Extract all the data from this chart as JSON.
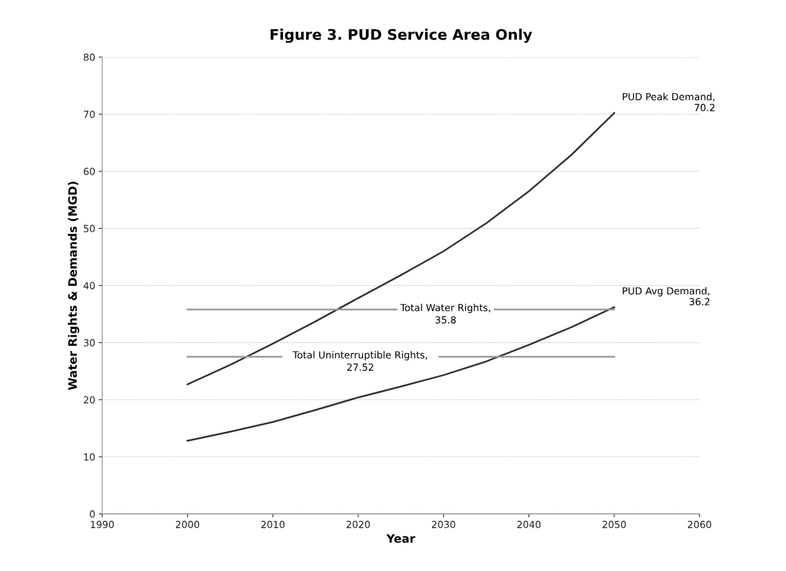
{
  "chart_data": {
    "type": "line",
    "title": "Figure 3. PUD Service Area Only",
    "xlabel": "Year",
    "ylabel": "Water Rights & Demands (MGD)",
    "series": [
      {
        "x": [
          2000,
          2005,
          2010,
          2015,
          2020,
          2025,
          2030,
          2035,
          2040,
          2045,
          2050
        ],
        "values": [
          22.7,
          26.1,
          29.8,
          33.7,
          37.8,
          41.8,
          46.0,
          50.9,
          56.5,
          62.9,
          70.2
        ],
        "color": "#333333"
      },
      {
        "x": [
          2000,
          2005,
          2010,
          2015,
          2020,
          2025,
          2030,
          2035,
          2040,
          2045,
          2050
        ],
        "values": [
          12.8,
          14.4,
          16.1,
          18.2,
          20.4,
          22.3,
          24.3,
          26.7,
          29.6,
          32.7,
          36.2
        ],
        "color": "#333333"
      },
      {
        "x": [
          2000,
          2024.5,
          2030,
          2036,
          2050
        ],
        "values": [
          35.8,
          35.8,
          null,
          35.8,
          35.8
        ],
        "color": "#999999"
      },
      {
        "x": [
          2000,
          2011,
          2020,
          2029.5,
          2050
        ],
        "values": [
          27.52,
          27.52,
          null,
          27.52,
          27.52
        ],
        "color": "#999999"
      }
    ],
    "annotations": [
      {
        "text": "PUD Peak Demand,\n70.2",
        "x": 2050,
        "y": 70.2
      },
      {
        "text": "PUD Avg Demand,\n36.2",
        "x": 2050,
        "y": 36.2
      },
      "Total Water Rights,\n35.8",
      "Total Uninterruptible Rights,\n27.52"
    ],
    "xlim": [
      1990,
      2060
    ],
    "xticks": [
      1990,
      2000,
      2010,
      2020,
      2030,
      2040,
      2050,
      2060
    ],
    "ylim": [
      0,
      80
    ],
    "yticks": [
      0,
      10,
      20,
      30,
      40,
      50,
      60,
      70,
      80
    ],
    "grid": "y",
    "marker": "none",
    "line_style": "solid"
  }
}
